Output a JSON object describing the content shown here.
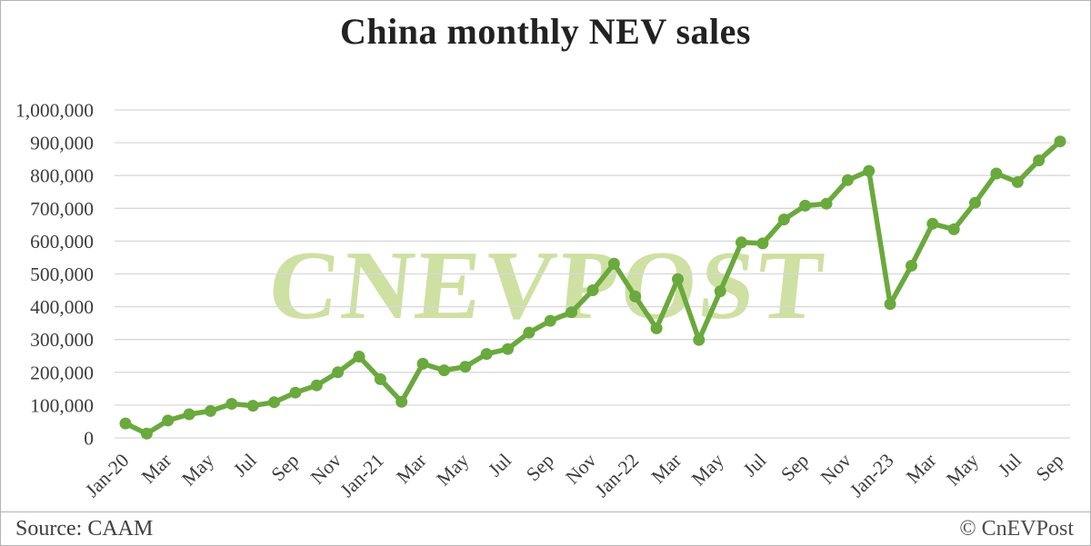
{
  "page": {
    "title": "China monthly NEV sales",
    "source": "Source: CAAM",
    "copyright": "© CnEVPost",
    "watermark": "CNEVPOST"
  },
  "colors": {
    "line": "#6aa93d",
    "marker": "#6aa93d",
    "watermark": "#cfe0a3",
    "gridline": "#d8d8d8",
    "axis_text": "#3c3c3c",
    "title_text": "#222222",
    "footer_text": "#3f3f3f",
    "border": "#b3b3b3",
    "background": "#ffffff"
  },
  "chart_data": {
    "type": "line",
    "title": "China monthly NEV sales",
    "series_name": "China monthly NEV sales",
    "xlabel": "",
    "ylabel": "",
    "grid": true,
    "legend": "none",
    "marker": "circle",
    "source": "CAAM",
    "watermark": "CNEVPOST",
    "ylim": [
      0,
      1000000
    ],
    "y_tick_step": 100000,
    "y_tick_labels": [
      "0",
      "100,000",
      "200,000",
      "300,000",
      "400,000",
      "500,000",
      "600,000",
      "700,000",
      "800,000",
      "900,000",
      "1,000,000"
    ],
    "x_tick_every": 2,
    "x_tick_labels": [
      "Jan-20",
      "Mar",
      "May",
      "Jul",
      "Sep",
      "Nov",
      "Jan-21",
      "Mar",
      "May",
      "Jul",
      "Sep",
      "Nov",
      "Jan-22",
      "Mar",
      "May",
      "Jul",
      "Sep",
      "Nov",
      "Jan-23",
      "Mar",
      "May",
      "Jul",
      "Sep"
    ],
    "categories": [
      "Jan-20",
      "Feb-20",
      "Mar-20",
      "Apr-20",
      "May-20",
      "Jun-20",
      "Jul-20",
      "Aug-20",
      "Sep-20",
      "Oct-20",
      "Nov-20",
      "Dec-20",
      "Jan-21",
      "Feb-21",
      "Mar-21",
      "Apr-21",
      "May-21",
      "Jun-21",
      "Jul-21",
      "Aug-21",
      "Sep-21",
      "Oct-21",
      "Nov-21",
      "Dec-21",
      "Jan-22",
      "Feb-22",
      "Mar-22",
      "Apr-22",
      "May-22",
      "Jun-22",
      "Jul-22",
      "Aug-22",
      "Sep-22",
      "Oct-22",
      "Nov-22",
      "Dec-22",
      "Jan-23",
      "Feb-23",
      "Mar-23",
      "Apr-23",
      "May-23",
      "Jun-23",
      "Jul-23",
      "Aug-23",
      "Sep-23"
    ],
    "values": [
      44000,
      13000,
      53000,
      72000,
      82000,
      104000,
      98000,
      109000,
      138000,
      160000,
      200000,
      248000,
      179000,
      110000,
      226000,
      206000,
      217000,
      256000,
      271000,
      321000,
      357000,
      383000,
      450000,
      531000,
      431000,
      334000,
      484000,
      299000,
      447000,
      596000,
      593000,
      666000,
      708000,
      714000,
      786000,
      814000,
      408000,
      525000,
      653000,
      636000,
      717000,
      806000,
      780000,
      846000,
      904000
    ]
  }
}
